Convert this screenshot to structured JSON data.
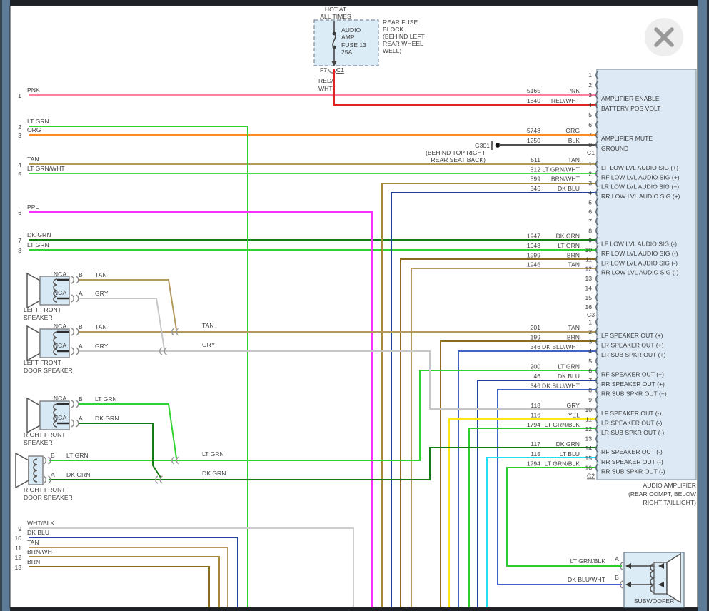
{
  "window": {
    "close_button_icon": "close-x"
  },
  "power": {
    "hot_label_lines": [
      "HOT AT",
      "ALL TIMES"
    ],
    "fuse_lines": [
      "AUDIO",
      "AMP",
      "FUSE 13",
      "25A"
    ],
    "fuse_block_lines": [
      "REAR FUSE",
      "BLOCK",
      "(BEHIND LEFT",
      "REAR WHEEL",
      "WELL)"
    ],
    "terminal": "F7",
    "connector": "C1",
    "wire_label_lines": [
      "RED/",
      "WHT"
    ]
  },
  "ground": {
    "name": "G301",
    "location_lines": [
      "(BEHIND TOP RIGHT",
      "REAR SEAT BACK)"
    ]
  },
  "amplifier": {
    "caption_lines": [
      "AUDIO AMPLIFIER",
      "(REAR COMPT, BELOW",
      "RIGHT TAILLIGHT)"
    ],
    "sections": [
      {
        "connector_label": "C1",
        "pins": [
          {
            "pin": "1"
          },
          {
            "pin": "2"
          },
          {
            "pin": "3",
            "circuit": "5165",
            "wire": "PNK",
            "function": "AMPLIFIER ENABLE"
          },
          {
            "pin": "4",
            "circuit": "1840",
            "wire": "RED/WHT",
            "function": "BATTERY POS VOLT"
          },
          {
            "pin": "5"
          },
          {
            "pin": "6"
          },
          {
            "pin": "7",
            "circuit": "5748",
            "wire": "ORG",
            "function": "AMPLIFIER MUTE"
          },
          {
            "pin": "8",
            "circuit": "1250",
            "wire": "BLK",
            "function": "GROUND"
          }
        ]
      },
      {
        "connector_label": "C3",
        "pins": [
          {
            "pin": "1",
            "circuit": "511",
            "wire": "TAN",
            "function": "LF LOW LVL AUDIO SIG (+)"
          },
          {
            "pin": "2",
            "circuit": "512",
            "wire": "LT GRN/WHT",
            "function": "RF LOW LVL AUDIO SIG (+)"
          },
          {
            "pin": "3",
            "circuit": "599",
            "wire": "BRN/WHT",
            "function": "LR LOW LVL AUDIO SIG (+)"
          },
          {
            "pin": "4",
            "circuit": "546",
            "wire": "DK BLU",
            "function": "RR LOW LVL AUDIO SIG (+)"
          },
          {
            "pin": "5"
          },
          {
            "pin": "6"
          },
          {
            "pin": "7"
          },
          {
            "pin": "8"
          },
          {
            "pin": "9",
            "circuit": "1947",
            "wire": "DK GRN",
            "function": "LF LOW LVL AUDIO SIG (-)"
          },
          {
            "pin": "10",
            "circuit": "1948",
            "wire": "LT GRN",
            "function": "RF LOW LVL AUDIO SIG (-)"
          },
          {
            "pin": "11",
            "circuit": "1999",
            "wire": "BRN",
            "function": "LR LOW LVL AUDIO SIG (-)"
          },
          {
            "pin": "12",
            "circuit": "1946",
            "wire": "TAN",
            "function": "RR LOW LVL AUDIO SIG (-)"
          },
          {
            "pin": "13"
          },
          {
            "pin": "14"
          },
          {
            "pin": "15"
          },
          {
            "pin": "16"
          }
        ]
      },
      {
        "connector_label": "C2",
        "pins": [
          {
            "pin": "1"
          },
          {
            "pin": "2",
            "circuit": "201",
            "wire": "TAN",
            "function": "LF SPEAKER OUT (+)"
          },
          {
            "pin": "3",
            "circuit": "199",
            "wire": "BRN",
            "function": "LR SPEAKER OUT (+)"
          },
          {
            "pin": "4",
            "circuit": "346",
            "wire": "DK BLU/WHT",
            "function": "LR SUB SPKR OUT (+)"
          },
          {
            "pin": "5"
          },
          {
            "pin": "6",
            "circuit": "200",
            "wire": "LT GRN",
            "function": "RF SPEAKER OUT (+)"
          },
          {
            "pin": "7",
            "circuit": "46",
            "wire": "DK BLU",
            "function": "RR SPEAKER OUT (+)"
          },
          {
            "pin": "8",
            "circuit": "346",
            "wire": "DK BLU/WHT",
            "function": "RR SUB SPKR OUT (+)"
          },
          {
            "pin": "9"
          },
          {
            "pin": "10",
            "circuit": "118",
            "wire": "GRY",
            "function": "LF SPEAKER OUT (-)"
          },
          {
            "pin": "11",
            "circuit": "116",
            "wire": "YEL",
            "function": "LR SPEAKER OUT (-)"
          },
          {
            "pin": "12",
            "circuit": "1794",
            "wire": "LT GRN/BLK",
            "function": "LR SUB SPKR OUT (-)"
          },
          {
            "pin": "13"
          },
          {
            "pin": "14",
            "circuit": "117",
            "wire": "DK GRN",
            "function": "RF SPEAKER OUT (-)"
          },
          {
            "pin": "15",
            "circuit": "115",
            "wire": "LT BLU",
            "function": "RR SPEAKER OUT (-)"
          },
          {
            "pin": "16",
            "circuit": "1794",
            "wire": "LT GRN/BLK",
            "function": "RR SUB SPKR OUT (-)"
          }
        ]
      }
    ]
  },
  "left_wires": [
    {
      "num": "1",
      "wire": "PNK"
    },
    {
      "num": "2",
      "wire": "LT GRN"
    },
    {
      "num": "3",
      "wire": "ORG"
    },
    {
      "num": "4",
      "wire": "TAN"
    },
    {
      "num": "5",
      "wire": "LT GRN/WHT"
    },
    {
      "num": "6",
      "wire": "PPL"
    },
    {
      "num": "7",
      "wire": "DK GRN"
    },
    {
      "num": "8",
      "wire": "LT GRN"
    },
    {
      "num": "9",
      "wire": "WHT/BLK"
    },
    {
      "num": "10",
      "wire": "DK BLU"
    },
    {
      "num": "11",
      "wire": "TAN"
    },
    {
      "num": "12",
      "wire": "BRN/WHT"
    },
    {
      "num": "13",
      "wire": "BRN"
    }
  ],
  "speakers": [
    {
      "name_lines": [
        "LEFT FRONT",
        "SPEAKER"
      ],
      "terminals": [
        {
          "nca": "NCA",
          "letter": "B",
          "wire": "TAN"
        },
        {
          "nca": "NCA",
          "letter": "A",
          "wire": "GRY"
        }
      ]
    },
    {
      "name_lines": [
        "LEFT FRONT",
        "DOOR SPEAKER"
      ],
      "terminals": [
        {
          "nca": "NCA",
          "letter": "B",
          "wire": "TAN"
        },
        {
          "nca": "NCA",
          "letter": "A",
          "wire": "GRY"
        }
      ]
    },
    {
      "name_lines": [
        "RIGHT FRONT",
        "SPEAKER"
      ],
      "terminals": [
        {
          "nca": "NCA",
          "letter": "B",
          "wire": "LT GRN"
        },
        {
          "nca": "NCA",
          "letter": "A",
          "wire": "DK GRN"
        }
      ]
    },
    {
      "name_lines": [
        "RIGHT FRONT",
        "DOOR SPEAKER"
      ],
      "terminals": [
        {
          "letter": "B",
          "wire": "LT GRN"
        },
        {
          "letter": "A",
          "wire": "DK GRN"
        }
      ]
    }
  ],
  "junction_labels": [
    "TAN",
    "GRY",
    "LT GRN",
    "DK GRN"
  ],
  "subwoofer": {
    "label": "SUBWOOFER",
    "pins": [
      {
        "letter": "A",
        "wire": "LT GRN/BLK"
      },
      {
        "letter": "B",
        "wire": "DK BLU/WHT"
      }
    ]
  },
  "wire_colors": {
    "PNK": "#ff7f9f",
    "RED/WHT": "#e02424",
    "ORG": "#ff8c1f",
    "BLK": "#4f4f4f",
    "TAN": "#b39a5c",
    "LT GRN": "#2ed32e",
    "LT GRN/WHT": "#4ade4a",
    "PPL": "#fb2ffb",
    "DK GRN": "#157c15",
    "WHT/BLK": "#cdcdcd",
    "DK BLU": "#223f9e",
    "BRN/WHT": "#a8893c",
    "BRN": "#8a6c1e",
    "GRY": "#c6c6c6",
    "YEL": "#ffe619",
    "DK BLU/WHT": "#4062c8",
    "LT BLU": "#22dff2",
    "LT GRN/BLK": "#2fcc2f"
  }
}
